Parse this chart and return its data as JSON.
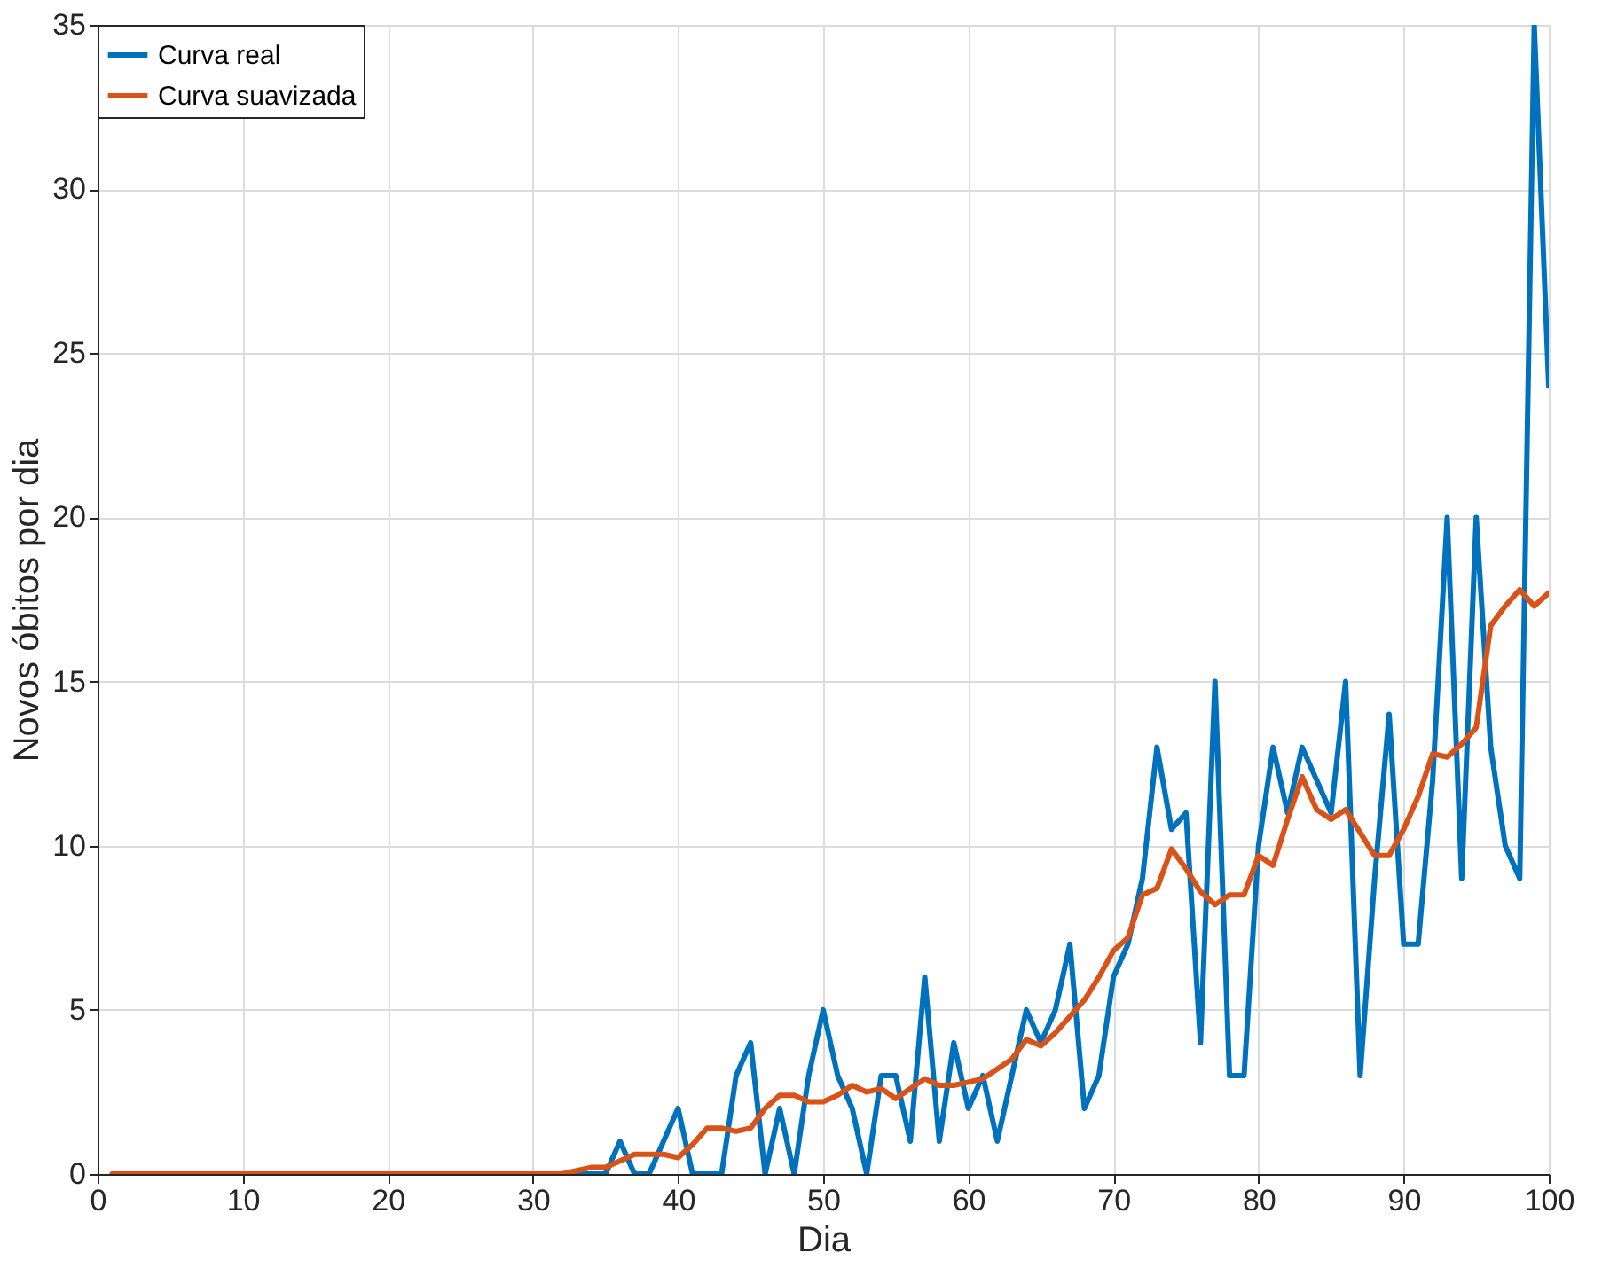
{
  "chart_data": {
    "type": "line",
    "xlabel": "Dia",
    "ylabel": "Novos óbitos por dia",
    "x": [
      1,
      2,
      3,
      4,
      5,
      6,
      7,
      8,
      9,
      10,
      11,
      12,
      13,
      14,
      15,
      16,
      17,
      18,
      19,
      20,
      21,
      22,
      23,
      24,
      25,
      26,
      27,
      28,
      29,
      30,
      31,
      32,
      33,
      34,
      35,
      36,
      37,
      38,
      39,
      40,
      41,
      42,
      43,
      44,
      45,
      46,
      47,
      48,
      49,
      50,
      51,
      52,
      53,
      54,
      55,
      56,
      57,
      58,
      59,
      60,
      61,
      62,
      63,
      64,
      65,
      66,
      67,
      68,
      69,
      70,
      71,
      72,
      73,
      74,
      75,
      76,
      77,
      78,
      79,
      80,
      81,
      82,
      83,
      84,
      85,
      86,
      87,
      88,
      89,
      90,
      91,
      92,
      93,
      94,
      95,
      96,
      97,
      98,
      99,
      100
    ],
    "series": [
      {
        "name": "Curva real",
        "color": "#0072bd",
        "values": [
          null,
          null,
          null,
          null,
          null,
          null,
          null,
          null,
          null,
          null,
          null,
          null,
          null,
          null,
          null,
          null,
          null,
          null,
          null,
          null,
          null,
          null,
          null,
          null,
          null,
          null,
          null,
          null,
          null,
          null,
          null,
          0,
          0,
          0,
          0,
          1,
          0,
          0,
          1,
          2,
          0,
          0,
          0,
          3,
          4,
          0,
          2,
          0,
          3,
          5,
          3,
          2,
          0,
          3,
          3,
          1,
          6,
          1,
          4,
          2,
          3,
          1,
          3,
          5,
          4,
          5,
          7,
          2,
          3,
          6,
          7,
          9,
          13,
          10.5,
          11,
          4,
          15,
          3,
          3,
          10,
          13,
          11,
          13,
          12,
          11,
          15,
          3,
          9,
          14,
          7,
          7,
          12,
          20,
          9,
          20,
          13,
          10,
          9,
          35,
          24
        ]
      },
      {
        "name": "Curva suavizada",
        "color": "#d95319",
        "values": [
          0,
          0,
          0,
          0,
          0,
          0,
          0,
          0,
          0,
          0,
          0,
          0,
          0,
          0,
          0,
          0,
          0,
          0,
          0,
          0,
          0,
          0,
          0,
          0,
          0,
          0,
          0,
          0,
          0,
          0,
          0,
          0,
          0.1,
          0.2,
          0.2,
          0.4,
          0.6,
          0.6,
          0.6,
          0.5,
          0.9,
          1.4,
          1.4,
          1.3,
          1.4,
          2.0,
          2.4,
          2.4,
          2.2,
          2.2,
          2.4,
          2.7,
          2.5,
          2.6,
          2.3,
          2.6,
          2.9,
          2.7,
          2.7,
          2.8,
          2.9,
          3.2,
          3.5,
          4.1,
          3.9,
          4.3,
          4.8,
          5.3,
          6.0,
          6.8,
          7.2,
          8.5,
          8.7,
          9.9,
          9.3,
          8.6,
          8.2,
          8.5,
          8.5,
          9.7,
          9.4,
          10.8,
          12.1,
          11.1,
          10.8,
          11.1,
          10.4,
          9.7,
          9.7,
          10.5,
          11.5,
          12.8,
          12.7,
          13.1,
          13.6,
          16.7,
          17.3,
          17.8,
          17.3,
          17.7
        ]
      }
    ],
    "xlim": [
      0,
      100
    ],
    "xticks": [
      0,
      10,
      20,
      30,
      40,
      50,
      60,
      70,
      80,
      90,
      100
    ],
    "ylim": [
      0,
      35
    ],
    "yticks": [
      0,
      5,
      10,
      15,
      20,
      25,
      30,
      35
    ],
    "grid": true,
    "legend": "top left",
    "line_style": "solid"
  }
}
